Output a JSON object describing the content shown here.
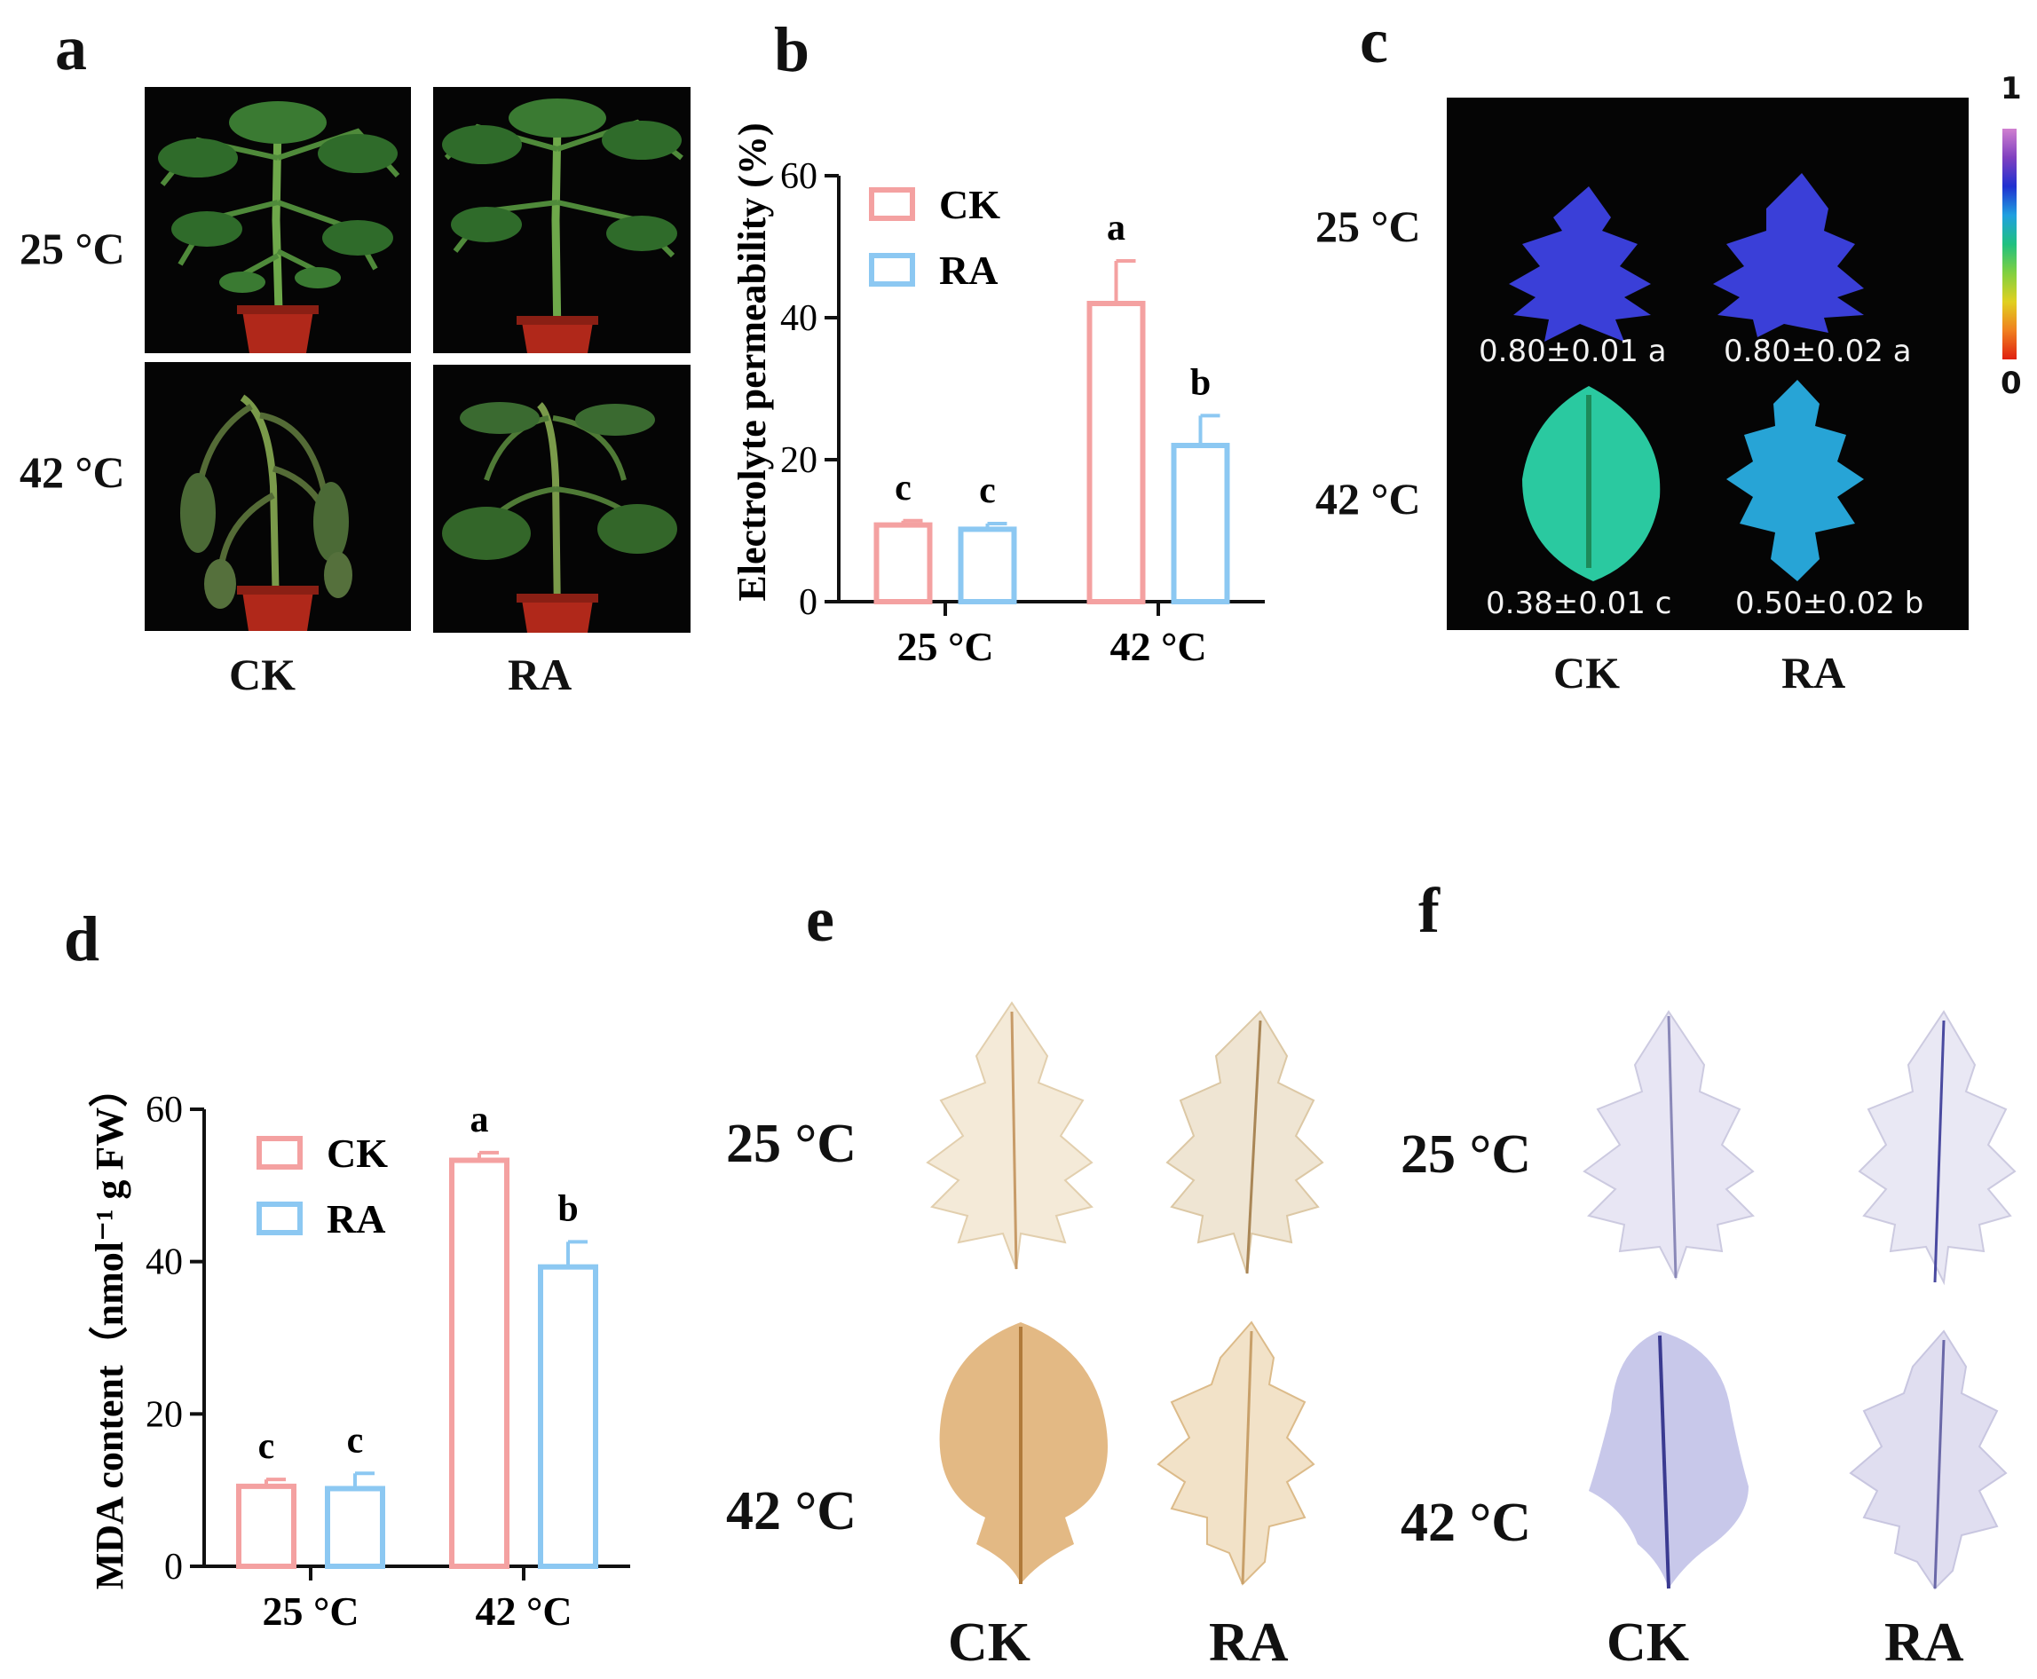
{
  "figure": {
    "panel_a": {
      "letter": "a",
      "row_labels": [
        "25 °C",
        "42 °C"
      ],
      "col_labels": [
        "CK",
        "RA"
      ]
    },
    "panel_c": {
      "letter": "c",
      "row_labels": [
        "25 °C",
        "42 °C"
      ],
      "col_labels": [
        "CK",
        "RA"
      ],
      "values": [
        "0.80±0.01 a",
        "0.80±0.02 a",
        "0.38±0.01 c",
        "0.50±0.02 b"
      ],
      "scale_max": "1",
      "scale_min": "0"
    },
    "panel_e": {
      "letter": "e",
      "row_labels": [
        "25 °C",
        "42 °C"
      ],
      "col_labels": [
        "CK",
        "RA"
      ]
    },
    "panel_f": {
      "letter": "f",
      "row_labels": [
        "25 °C",
        "42 °C"
      ],
      "col_labels": [
        "CK",
        "RA"
      ]
    }
  },
  "chart_data": [
    {
      "panel": "b",
      "type": "bar",
      "ylabel": "Electrolyte permeability (%)",
      "categories": [
        "25 °C",
        "42 °C"
      ],
      "ylim": [
        0,
        60
      ],
      "yticks": [
        "0",
        "20",
        "40",
        "60"
      ],
      "legend": "top-left",
      "grid": false,
      "series": [
        {
          "name": "CK",
          "color": "#f4a1a1",
          "values": [
            10.8,
            42.0
          ],
          "errors": [
            0.6,
            6.0
          ],
          "letters": [
            "c",
            "a"
          ]
        },
        {
          "name": "RA",
          "color": "#8cc8f2",
          "values": [
            10.2,
            22.0
          ],
          "errors": [
            0.8,
            4.2
          ],
          "letters": [
            "c",
            "b"
          ]
        }
      ]
    },
    {
      "panel": "d",
      "type": "bar",
      "ylabel": "MDA content（nmol⁻¹ g FW）",
      "categories": [
        "25 °C",
        "42 °C"
      ],
      "ylim": [
        0,
        60
      ],
      "yticks": [
        "0",
        "20",
        "40",
        "60"
      ],
      "legend": "top-left",
      "grid": false,
      "series": [
        {
          "name": "CK",
          "color": "#f4a1a1",
          "values": [
            10.5,
            53.3
          ],
          "errors": [
            0.9,
            1.0
          ],
          "letters": [
            "c",
            "a"
          ]
        },
        {
          "name": "RA",
          "color": "#8cc8f2",
          "values": [
            10.2,
            39.3
          ],
          "errors": [
            2.0,
            3.3
          ],
          "letters": [
            "c",
            "b"
          ]
        }
      ]
    }
  ]
}
